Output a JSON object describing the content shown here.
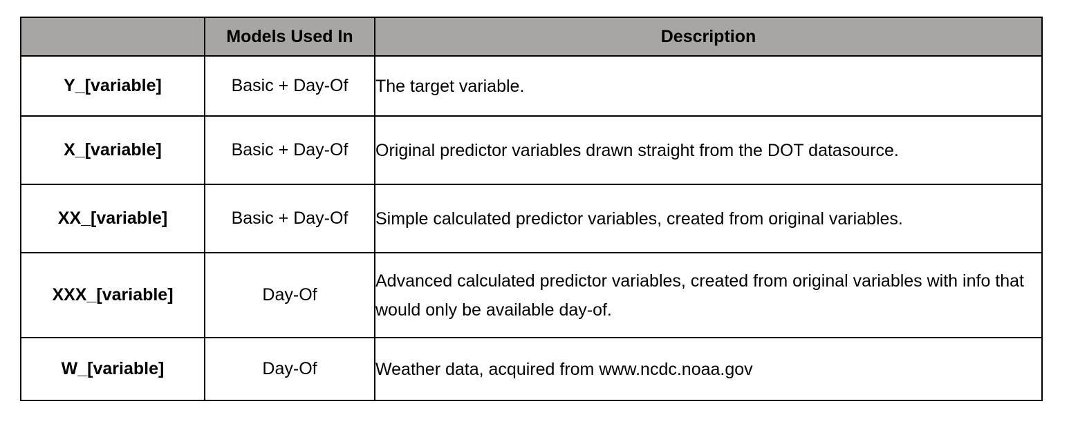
{
  "table": {
    "headers": [
      "",
      "Models Used In",
      "Description"
    ],
    "rows": [
      {
        "name": "Y_[variable]",
        "models": "Basic + Day-Of",
        "description": "The target variable."
      },
      {
        "name": "X_[variable]",
        "models": "Basic + Day-Of",
        "description": "Original predictor variables drawn straight from the DOT datasource."
      },
      {
        "name": "XX_[variable]",
        "models": "Basic + Day-Of",
        "description": "Simple calculated predictor variables, created from original variables."
      },
      {
        "name": "XXX_[variable]",
        "models": "Day-Of",
        "description": "Advanced calculated predictor variables, created from original variables with info that would only be available day-of."
      },
      {
        "name": "W_[variable]",
        "models": "Day-Of",
        "description": "Weather data, acquired from www.ncdc.noaa.gov"
      }
    ]
  },
  "colors": {
    "header_background": "#a8a5a5",
    "border": "#000000"
  }
}
